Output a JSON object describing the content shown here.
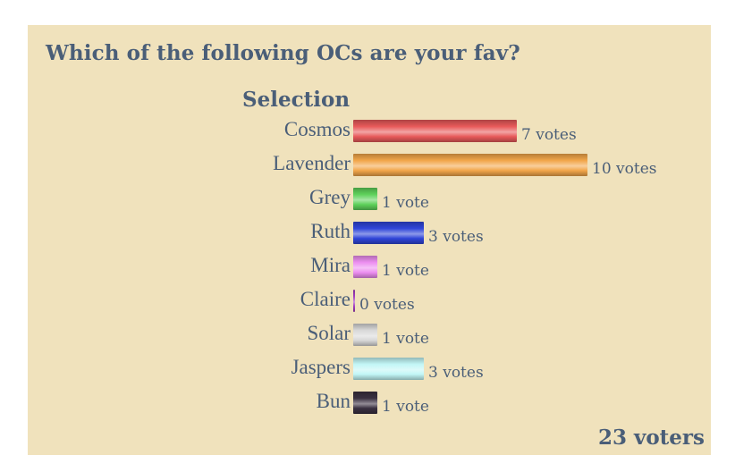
{
  "poll": {
    "title": "Which of the following OCs are your fav?",
    "column_header": "Selection",
    "voters_label": "23 voters"
  },
  "chart_data": {
    "type": "bar",
    "orientation": "horizontal",
    "title": "Which of the following OCs are your fav?",
    "xlabel": "",
    "ylabel": "Selection",
    "grid": false,
    "categories": [
      "Cosmos",
      "Lavender",
      "Grey",
      "Ruth",
      "Mira",
      "Claire",
      "Solar",
      "Jaspers",
      "Bun"
    ],
    "values": [
      7,
      10,
      1,
      3,
      1,
      0,
      1,
      3,
      1
    ],
    "value_labels": [
      "7 votes",
      "10 votes",
      "1 vote",
      "3 votes",
      "1 vote",
      "0 votes",
      "1 vote",
      "3 votes",
      "1 vote"
    ],
    "bar_colors": [
      "#e85a5a",
      "#f2a64a",
      "#5ed15a",
      "#2f45d8",
      "#ec8ef0",
      "#a23cc0",
      "#d8d8d8",
      "#c2f6f6",
      "#3a3040"
    ],
    "xlim": [
      0,
      10
    ],
    "total_voters": 23
  }
}
